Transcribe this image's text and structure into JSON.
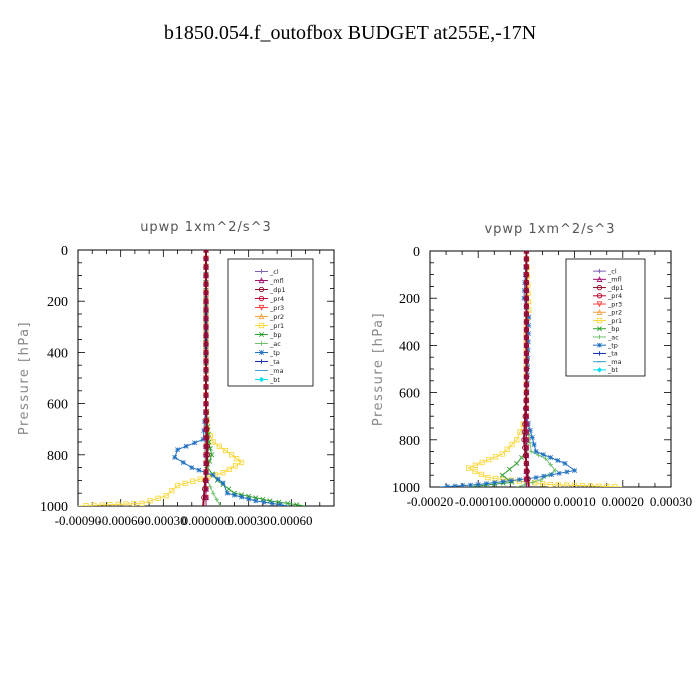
{
  "title": "b1850.054.f_outofbox  BUDGET at255E,-17N",
  "legend_labels": [
    "_cl",
    "_mfl",
    "_dp1",
    "_pr4",
    "_pr3",
    "_pr2",
    "_pr1",
    "_bp",
    "_ac",
    "_tp",
    "_ta",
    "_ma",
    "_bt"
  ],
  "series_colors": [
    "#7f5fb3",
    "#a01070",
    "#8b0a2a",
    "#c00030",
    "#ff4040",
    "#f0a040",
    "#f8d840",
    "#30a030",
    "#70c070",
    "#2070c0",
    "#1030b0",
    "#40a0d0",
    "#00e0f0"
  ],
  "chart_data": [
    {
      "type": "line",
      "title": "upwp   1xm^2/s^3",
      "ylabel": "Pressure [hPa]",
      "xlabel": "",
      "ylim": [
        1000,
        0
      ],
      "xlim": [
        -0.0009,
        0.0009
      ],
      "xtick_values": [
        -0.0009,
        -0.0006,
        -0.0003,
        0,
        0.0003,
        0.0006
      ],
      "xtick_labels": [
        "-0.00090",
        "-0.00060",
        "-0.00030",
        "0.000000",
        "0.00030",
        "0.00060"
      ],
      "ytick_values": [
        0,
        200,
        400,
        600,
        800,
        1000
      ],
      "ytick_labels": [
        "0",
        "200",
        "400",
        "600",
        "800",
        "1000"
      ],
      "legend_position": "top-right",
      "series": [
        {
          "name": "_cl",
          "x": [
            0,
            0,
            0,
            0,
            0,
            0
          ],
          "y": [
            0,
            200,
            400,
            600,
            800,
            1000
          ]
        },
        {
          "name": "_mfl",
          "x": [
            0,
            0,
            0,
            0,
            0,
            0
          ],
          "y": [
            0,
            200,
            400,
            600,
            800,
            1000
          ]
        },
        {
          "name": "_dp1",
          "x": [
            0,
            0,
            0,
            0,
            1e-05,
            -2e-05
          ],
          "y": [
            0,
            200,
            400,
            600,
            800,
            1000
          ]
        },
        {
          "name": "_pr4",
          "x": [
            0,
            0,
            0,
            0,
            0,
            0
          ],
          "y": [
            0,
            200,
            400,
            600,
            800,
            1000
          ]
        },
        {
          "name": "_pr3",
          "x": [
            0,
            0,
            0,
            0,
            0,
            0
          ],
          "y": [
            0,
            200,
            400,
            600,
            800,
            1000
          ]
        },
        {
          "name": "_pr2",
          "x": [
            0,
            0,
            0,
            0,
            0,
            0
          ],
          "y": [
            0,
            200,
            400,
            600,
            800,
            1000
          ]
        },
        {
          "name": "_pr1",
          "x": [
            0,
            0,
            1e-05,
            5e-05,
            0.00018,
            0.00025,
            0.00012,
            -0.0002,
            -0.00028,
            -0.00045,
            -0.0009
          ],
          "y": [
            0,
            600,
            700,
            750,
            800,
            830,
            870,
            920,
            960,
            990,
            1000
          ]
        },
        {
          "name": "_bp",
          "x": [
            0,
            0,
            2e-05,
            4e-05,
            1e-05,
            8e-05,
            0.0002,
            0.00045,
            0.0007
          ],
          "y": [
            0,
            600,
            750,
            800,
            850,
            900,
            950,
            980,
            1000
          ]
        },
        {
          "name": "_ac",
          "x": [
            0,
            0,
            -1e-05,
            0,
            1e-05,
            5e-05,
            0.0001
          ],
          "y": [
            0,
            600,
            800,
            850,
            900,
            950,
            1000
          ]
        },
        {
          "name": "_tp",
          "x": [
            0,
            0,
            -2e-05,
            -0.0002,
            -0.00022,
            -0.0001,
            5e-05,
            0.00012,
            0.00015,
            0.00035,
            0.00058
          ],
          "y": [
            0,
            600,
            740,
            780,
            810,
            850,
            880,
            910,
            950,
            980,
            1000
          ]
        },
        {
          "name": "_ta",
          "x": [
            0,
            0,
            0,
            0,
            0,
            0
          ],
          "y": [
            0,
            200,
            400,
            600,
            800,
            1000
          ]
        },
        {
          "name": "_ma",
          "x": [
            0,
            0,
            0,
            0,
            0,
            0
          ],
          "y": [
            0,
            200,
            400,
            600,
            800,
            1000
          ]
        },
        {
          "name": "_bt",
          "x": [
            0,
            0,
            0,
            0,
            0,
            0
          ],
          "y": [
            0,
            200,
            400,
            600,
            800,
            1000
          ]
        }
      ]
    },
    {
      "type": "line",
      "title": "vpwp   1xm^2/s^3",
      "ylabel": "Pressure [hPa]",
      "xlabel": "",
      "ylim": [
        1000,
        0
      ],
      "xlim": [
        -0.0002,
        0.0003
      ],
      "xtick_values": [
        -0.0002,
        -0.0001,
        0,
        0.0001,
        0.0002,
        0.0003
      ],
      "xtick_labels": [
        "-0.00020",
        "-0.00010",
        "0.000000",
        "0.00010",
        "0.00020",
        "0.00030"
      ],
      "ytick_values": [
        0,
        200,
        400,
        600,
        800,
        1000
      ],
      "ytick_labels": [
        "0",
        "200",
        "400",
        "600",
        "800",
        "1000"
      ],
      "legend_position": "top-right",
      "series": [
        {
          "name": "_cl",
          "x": [
            0,
            0,
            0,
            0,
            0,
            0
          ],
          "y": [
            0,
            200,
            400,
            600,
            800,
            1000
          ]
        },
        {
          "name": "_mfl",
          "x": [
            0,
            0,
            0,
            0,
            0,
            0
          ],
          "y": [
            0,
            200,
            400,
            600,
            800,
            1000
          ]
        },
        {
          "name": "_dp1",
          "x": [
            0,
            0,
            0,
            0,
            -5e-06,
            5e-06
          ],
          "y": [
            0,
            200,
            400,
            600,
            800,
            1000
          ]
        },
        {
          "name": "_pr4",
          "x": [
            0,
            0,
            0,
            0,
            0,
            0
          ],
          "y": [
            0,
            200,
            400,
            600,
            800,
            1000
          ]
        },
        {
          "name": "_pr3",
          "x": [
            0,
            0,
            0,
            0,
            0,
            0
          ],
          "y": [
            0,
            200,
            400,
            600,
            800,
            1000
          ]
        },
        {
          "name": "_pr2",
          "x": [
            0,
            0,
            0,
            0,
            0,
            0
          ],
          "y": [
            0,
            200,
            400,
            600,
            800,
            1000
          ]
        },
        {
          "name": "_pr1",
          "x": [
            0,
            5e-06,
            0,
            0,
            -2e-05,
            -5e-05,
            -0.00012,
            -8e-05,
            5e-05,
            0.0002
          ],
          "y": [
            0,
            250,
            320,
            700,
            800,
            860,
            920,
            960,
            990,
            1000
          ]
        },
        {
          "name": "_bp",
          "x": [
            0,
            0,
            0,
            -2e-05,
            -5e-05,
            -3e-05,
            -0.00012
          ],
          "y": [
            0,
            700,
            850,
            900,
            950,
            980,
            1000
          ]
        },
        {
          "name": "_ac",
          "x": [
            0,
            0,
            1e-05,
            4e-05,
            6e-05,
            3e-05,
            -2e-05
          ],
          "y": [
            0,
            700,
            850,
            880,
            930,
            970,
            1000
          ]
        },
        {
          "name": "_tp",
          "x": [
            0,
            -5e-06,
            5e-06,
            0,
            2e-05,
            8e-05,
            0.0001,
            2e-05,
            -0.0001,
            -0.00018
          ],
          "y": [
            0,
            200,
            280,
            700,
            850,
            900,
            930,
            960,
            990,
            1000
          ]
        },
        {
          "name": "_ta",
          "x": [
            0,
            0,
            0,
            0,
            0,
            0
          ],
          "y": [
            0,
            200,
            400,
            600,
            800,
            1000
          ]
        },
        {
          "name": "_ma",
          "x": [
            0,
            0,
            0,
            0,
            0,
            0
          ],
          "y": [
            0,
            200,
            400,
            600,
            800,
            1000
          ]
        },
        {
          "name": "_bt",
          "x": [
            0,
            0,
            0,
            0,
            0,
            0
          ],
          "y": [
            0,
            200,
            400,
            600,
            800,
            1000
          ]
        }
      ]
    }
  ]
}
